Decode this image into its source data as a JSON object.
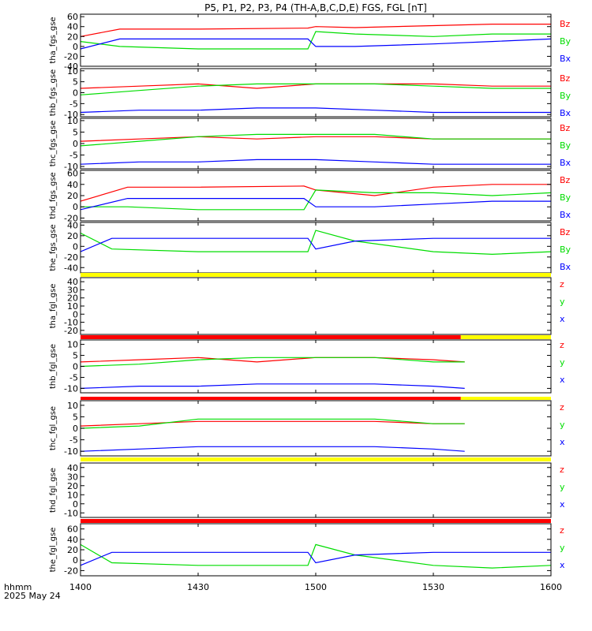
{
  "title": "P5, P1, P2, P3, P4 (TH-A,B,C,D,E) FGS, FGL [nT]",
  "colors": {
    "z": "#ff0000",
    "y": "#00dd00",
    "x": "#0000ff",
    "frame": "#000000",
    "bar_yellow": "#ffff00",
    "bar_red": "#ff0000"
  },
  "x_axis": {
    "range": [
      "14:00",
      "16:00"
    ],
    "ticks": [
      {
        "t": "14:00",
        "label": "1400"
      },
      {
        "t": "14:30",
        "label": "1430"
      },
      {
        "t": "15:00",
        "label": "1500"
      },
      {
        "t": "15:30",
        "label": "1530"
      },
      {
        "t": "16:00",
        "label": "1600"
      }
    ],
    "corner_label": "hhmm",
    "date_label": "2025 May 24"
  },
  "chart_data": [
    {
      "type": "line",
      "ylabel": "tha_fgs_gse",
      "ylim": [
        -40,
        65
      ],
      "yticks": [
        60,
        40,
        20,
        0,
        -20,
        -40
      ],
      "legend": [
        "Bz",
        "By",
        "Bx"
      ],
      "series": [
        {
          "name": "Bz",
          "x": [
            "14:00",
            "14:10",
            "14:30",
            "14:58",
            "15:00",
            "15:10",
            "15:30",
            "15:45",
            "16:00"
          ],
          "y": [
            20,
            35,
            35,
            37,
            40,
            38,
            42,
            45,
            45
          ]
        },
        {
          "name": "By",
          "x": [
            "14:00",
            "14:10",
            "14:30",
            "14:58",
            "15:00",
            "15:10",
            "15:30",
            "15:45",
            "16:00"
          ],
          "y": [
            10,
            0,
            -5,
            -5,
            30,
            25,
            20,
            25,
            25
          ]
        },
        {
          "name": "Bx",
          "x": [
            "14:00",
            "14:10",
            "14:30",
            "14:58",
            "15:00",
            "15:10",
            "15:30",
            "15:45",
            "16:00"
          ],
          "y": [
            -5,
            15,
            15,
            15,
            0,
            0,
            5,
            10,
            15
          ]
        }
      ]
    },
    {
      "type": "line",
      "ylabel": "thb_fgs_gse",
      "ylim": [
        -11,
        11
      ],
      "yticks": [
        10,
        5,
        0,
        -5,
        -10
      ],
      "legend": [
        "Bz",
        "By",
        "Bx"
      ],
      "series": [
        {
          "name": "Bz",
          "x": [
            "14:00",
            "14:15",
            "14:30",
            "14:45",
            "15:00",
            "15:15",
            "15:30",
            "15:45",
            "16:00"
          ],
          "y": [
            2,
            3,
            4,
            2,
            4,
            4,
            4,
            3,
            3
          ]
        },
        {
          "name": "By",
          "x": [
            "14:00",
            "14:15",
            "14:30",
            "14:45",
            "15:00",
            "15:15",
            "15:30",
            "15:45",
            "16:00"
          ],
          "y": [
            -1,
            1,
            3,
            4,
            4,
            4,
            3,
            2,
            2
          ]
        },
        {
          "name": "Bx",
          "x": [
            "14:00",
            "14:15",
            "14:30",
            "14:45",
            "15:00",
            "15:15",
            "15:30",
            "15:45",
            "16:00"
          ],
          "y": [
            -9,
            -8,
            -8,
            -7,
            -7,
            -8,
            -9,
            -9,
            -9
          ]
        }
      ]
    },
    {
      "type": "line",
      "ylabel": "thc_fgs_gse",
      "ylim": [
        -11,
        11
      ],
      "yticks": [
        10,
        5,
        0,
        -5,
        -10
      ],
      "legend": [
        "Bz",
        "By",
        "Bx"
      ],
      "series": [
        {
          "name": "Bz",
          "x": [
            "14:00",
            "14:15",
            "14:30",
            "14:45",
            "15:00",
            "15:15",
            "15:30",
            "15:45",
            "16:00"
          ],
          "y": [
            1,
            2,
            3,
            2,
            3,
            3,
            2,
            2,
            2
          ]
        },
        {
          "name": "By",
          "x": [
            "14:00",
            "14:15",
            "14:30",
            "14:45",
            "15:00",
            "15:15",
            "15:30",
            "15:45",
            "16:00"
          ],
          "y": [
            -1,
            1,
            3,
            4,
            4,
            4,
            2,
            2,
            2
          ]
        },
        {
          "name": "Bx",
          "x": [
            "14:00",
            "14:15",
            "14:30",
            "14:45",
            "15:00",
            "15:15",
            "15:30",
            "15:45",
            "16:00"
          ],
          "y": [
            -9,
            -8,
            -8,
            -7,
            -7,
            -8,
            -9,
            -9,
            -9
          ]
        }
      ]
    },
    {
      "type": "line",
      "ylabel": "thd_fgs_gse",
      "ylim": [
        -25,
        65
      ],
      "yticks": [
        60,
        40,
        20,
        0,
        -20
      ],
      "legend": [
        "Bz",
        "By",
        "Bx"
      ],
      "series": [
        {
          "name": "Bz",
          "x": [
            "14:00",
            "14:12",
            "14:30",
            "14:57",
            "15:00",
            "15:15",
            "15:30",
            "15:45",
            "16:00"
          ],
          "y": [
            10,
            35,
            35,
            37,
            30,
            20,
            35,
            40,
            40
          ]
        },
        {
          "name": "By",
          "x": [
            "14:00",
            "14:12",
            "14:30",
            "14:57",
            "15:00",
            "15:15",
            "15:30",
            "15:45",
            "16:00"
          ],
          "y": [
            0,
            0,
            -5,
            -5,
            30,
            25,
            25,
            20,
            25
          ]
        },
        {
          "name": "Bx",
          "x": [
            "14:00",
            "14:12",
            "14:30",
            "14:57",
            "15:00",
            "15:15",
            "15:30",
            "15:45",
            "16:00"
          ],
          "y": [
            -5,
            15,
            15,
            15,
            0,
            0,
            5,
            10,
            10
          ]
        }
      ]
    },
    {
      "type": "line",
      "ylabel": "the_fgs_gse",
      "ylim": [
        -50,
        45
      ],
      "yticks": [
        40,
        20,
        0,
        -20,
        -40
      ],
      "legend": [
        "Bz",
        "By",
        "Bx"
      ],
      "series": [
        {
          "name": "By",
          "x": [
            "14:00",
            "14:08",
            "14:30",
            "14:58",
            "15:00",
            "15:10",
            "15:30",
            "15:45",
            "16:00"
          ],
          "y": [
            25,
            -5,
            -10,
            -10,
            30,
            10,
            -10,
            -15,
            -10
          ]
        },
        {
          "name": "Bx",
          "x": [
            "14:00",
            "14:08",
            "14:30",
            "14:58",
            "15:00",
            "15:10",
            "15:30",
            "15:45",
            "16:00"
          ],
          "y": [
            -10,
            15,
            15,
            15,
            -5,
            10,
            15,
            15,
            15
          ]
        }
      ]
    },
    {
      "type": "line",
      "ylabel": "tha_fgl_gse",
      "ylim": [
        -25,
        45
      ],
      "yticks": [
        40,
        30,
        20,
        10,
        0,
        -10,
        -20
      ],
      "legend": [
        "z",
        "y",
        "x"
      ],
      "series": []
    },
    {
      "type": "line",
      "ylabel": "thb_fgl_gse",
      "ylim": [
        -12,
        12
      ],
      "yticks": [
        10,
        5,
        0,
        -5,
        -10
      ],
      "legend": [
        "z",
        "y",
        "x"
      ],
      "series": [
        {
          "name": "z",
          "x": [
            "14:00",
            "14:15",
            "14:30",
            "14:45",
            "15:00",
            "15:15",
            "15:30",
            "15:38"
          ],
          "y": [
            2,
            3,
            4,
            2,
            4,
            4,
            3,
            2
          ]
        },
        {
          "name": "y",
          "x": [
            "14:00",
            "14:15",
            "14:30",
            "14:45",
            "15:00",
            "15:15",
            "15:30",
            "15:38"
          ],
          "y": [
            0,
            1,
            3,
            4,
            4,
            4,
            2,
            2
          ]
        },
        {
          "name": "x",
          "x": [
            "14:00",
            "14:15",
            "14:30",
            "14:45",
            "15:00",
            "15:15",
            "15:30",
            "15:38"
          ],
          "y": [
            -10,
            -9,
            -9,
            -8,
            -8,
            -8,
            -9,
            -10
          ]
        }
      ]
    },
    {
      "type": "line",
      "ylabel": "thc_fgl_gse",
      "ylim": [
        -12,
        12
      ],
      "yticks": [
        10,
        5,
        0,
        -5,
        -10
      ],
      "legend": [
        "z",
        "y",
        "x"
      ],
      "series": [
        {
          "name": "z",
          "x": [
            "14:00",
            "14:15",
            "14:30",
            "14:45",
            "15:00",
            "15:15",
            "15:30",
            "15:38"
          ],
          "y": [
            1,
            2,
            3,
            3,
            3,
            3,
            2,
            2
          ]
        },
        {
          "name": "y",
          "x": [
            "14:00",
            "14:15",
            "14:30",
            "14:45",
            "15:00",
            "15:15",
            "15:30",
            "15:38"
          ],
          "y": [
            0,
            1,
            4,
            4,
            4,
            4,
            2,
            2
          ]
        },
        {
          "name": "x",
          "x": [
            "14:00",
            "14:15",
            "14:30",
            "14:45",
            "15:00",
            "15:15",
            "15:30",
            "15:38"
          ],
          "y": [
            -10,
            -9,
            -8,
            -8,
            -8,
            -8,
            -9,
            -10
          ]
        }
      ]
    },
    {
      "type": "line",
      "ylabel": "thd_fgl_gse",
      "ylim": [
        -15,
        45
      ],
      "yticks": [
        40,
        30,
        20,
        10,
        0,
        -10
      ],
      "legend": [
        "z",
        "y",
        "x"
      ],
      "series": []
    },
    {
      "type": "line",
      "ylabel": "the_fgl_gse",
      "ylim": [
        -30,
        70
      ],
      "yticks": [
        60,
        40,
        20,
        0,
        -20
      ],
      "legend": [
        "z",
        "y",
        "x"
      ],
      "series": [
        {
          "name": "y",
          "x": [
            "14:00",
            "14:08",
            "14:30",
            "14:58",
            "15:00",
            "15:10",
            "15:30",
            "15:45",
            "16:00"
          ],
          "y": [
            30,
            -5,
            -10,
            -10,
            30,
            10,
            -10,
            -15,
            -10
          ]
        },
        {
          "name": "x",
          "x": [
            "14:00",
            "14:08",
            "14:30",
            "14:58",
            "15:00",
            "15:10",
            "15:30",
            "15:45",
            "16:00"
          ],
          "y": [
            -10,
            15,
            15,
            15,
            -5,
            10,
            15,
            15,
            15
          ]
        }
      ]
    }
  ],
  "status_bars": [
    {
      "above_panel": 5,
      "segments": [
        {
          "from": "14:00",
          "to": "16:00",
          "color": "yellow"
        }
      ]
    },
    {
      "above_panel": 6,
      "segments": [
        {
          "from": "14:00",
          "to": "15:37",
          "color": "red"
        },
        {
          "from": "15:37",
          "to": "16:00",
          "color": "yellow"
        }
      ]
    },
    {
      "above_panel": 7,
      "segments": [
        {
          "from": "14:00",
          "to": "15:37",
          "color": "red"
        },
        {
          "from": "15:37",
          "to": "16:00",
          "color": "yellow"
        }
      ]
    },
    {
      "above_panel": 8,
      "segments": [
        {
          "from": "14:00",
          "to": "16:00",
          "color": "yellow"
        }
      ]
    },
    {
      "above_panel": 9,
      "segments": [
        {
          "from": "14:00",
          "to": "16:00",
          "color": "red"
        }
      ]
    }
  ]
}
